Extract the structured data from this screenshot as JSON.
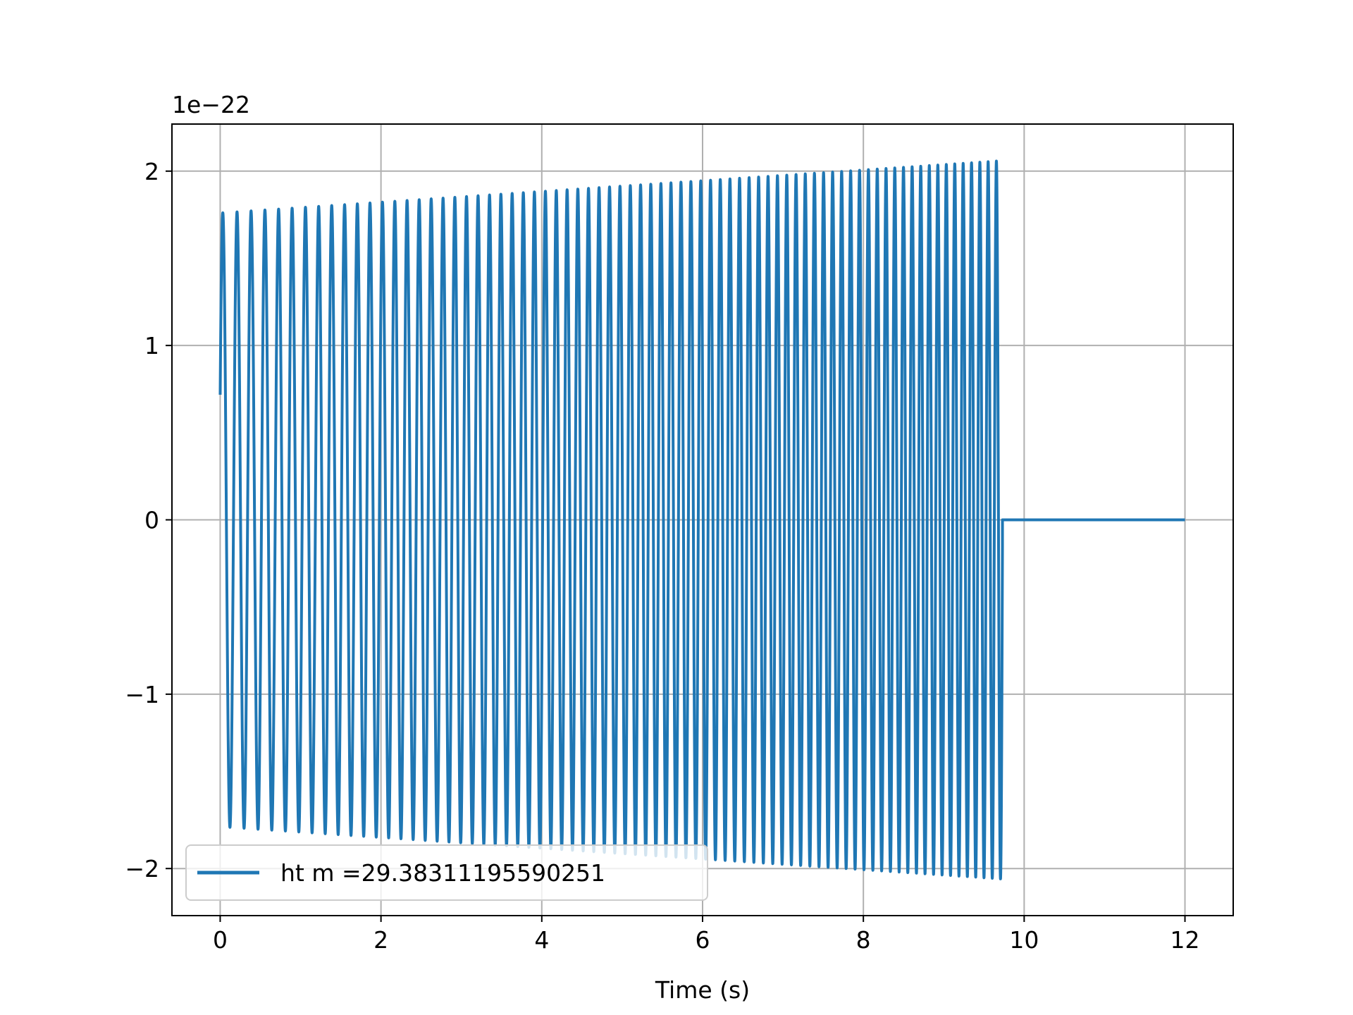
{
  "chart_data": {
    "type": "line",
    "title": "",
    "xlabel": "Time (s)",
    "ylabel": "",
    "y_scale_offset_label": "1e−22",
    "xlim": [
      -0.6,
      12.6
    ],
    "ylim": [
      -2.27,
      2.27
    ],
    "x_ticks": [
      0,
      2,
      4,
      6,
      8,
      10,
      12
    ],
    "x_tick_labels": [
      "0",
      "2",
      "4",
      "6",
      "8",
      "10",
      "12"
    ],
    "y_ticks": [
      -2,
      -1,
      0,
      1,
      2
    ],
    "y_tick_labels": [
      "−2",
      "−1",
      "0",
      "1",
      "2"
    ],
    "grid": true,
    "legend_position": "lower-left",
    "series": [
      {
        "name": "ht m =29.38311195590251",
        "color": "#1f77b4",
        "description_values": {
          "start_t": 0,
          "chirp_end_t": 9.73,
          "end_t": 12,
          "amp_start": 1.76,
          "amp_end": 2.06,
          "freq_start_hz": 5.6,
          "freq_end_hz": 9.8,
          "phase_start": 0.42,
          "post_merger_value": 0
        }
      }
    ]
  }
}
